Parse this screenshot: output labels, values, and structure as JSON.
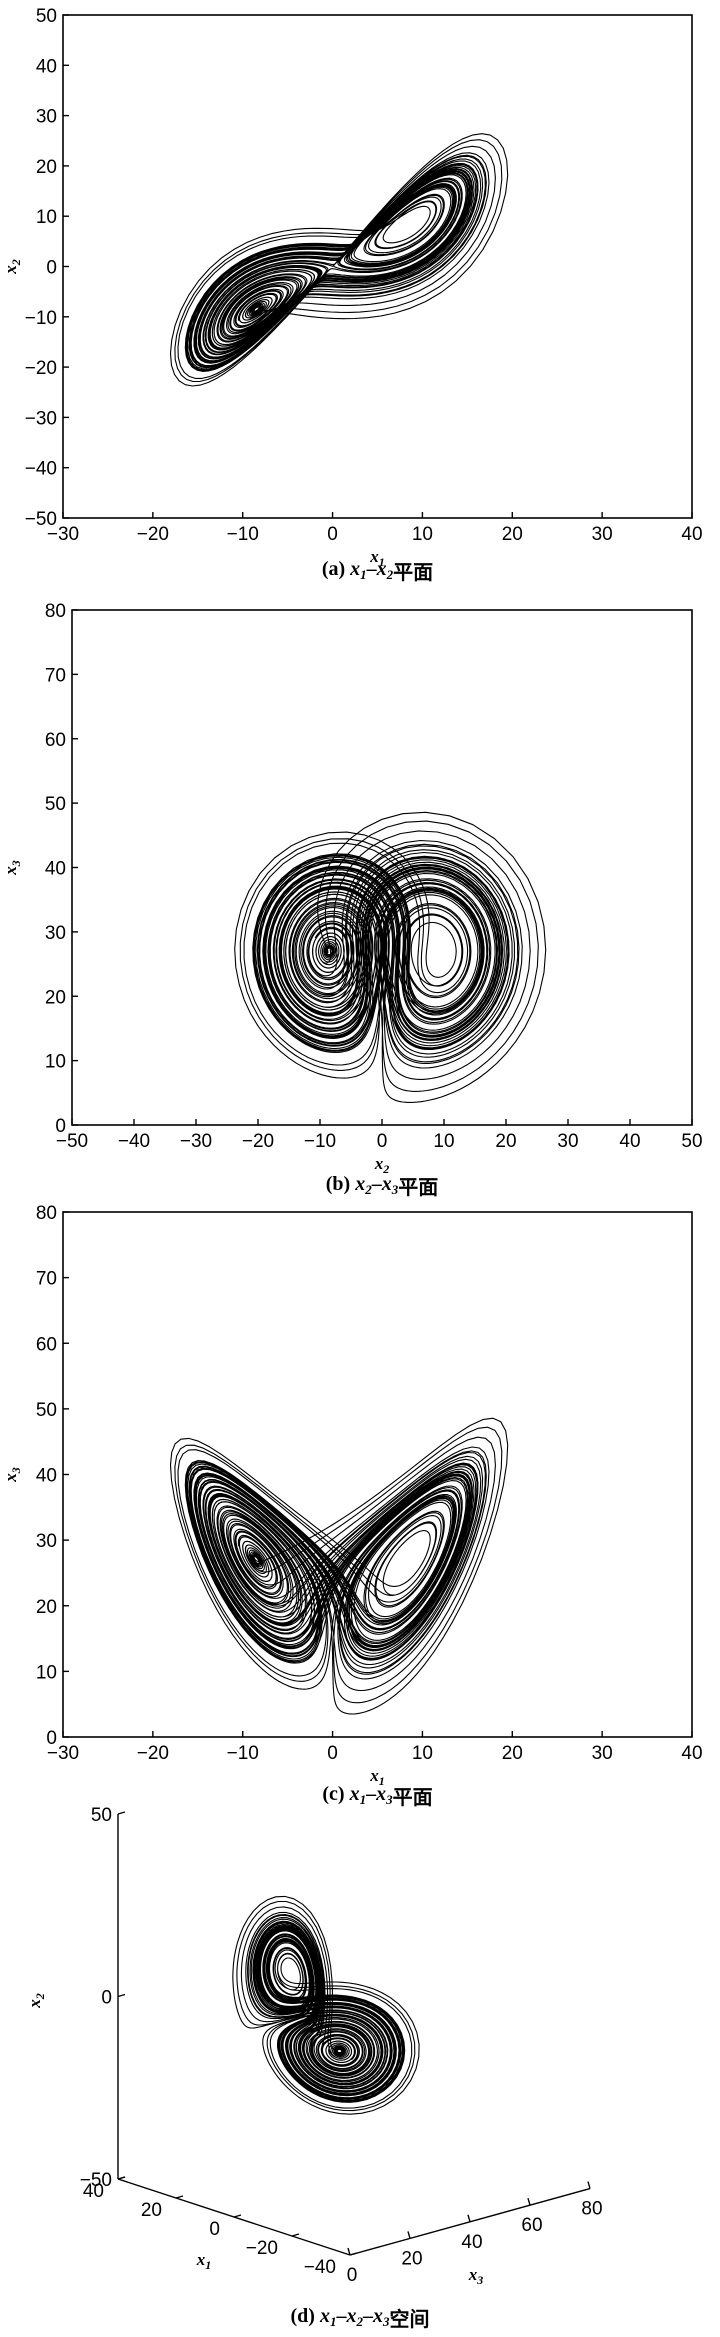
{
  "chart_data": [
    {
      "type": "line",
      "caption": "(a) x1-x2平面",
      "caption_parts": {
        "prefix": "(a)",
        "vars": [
          "x",
          "1",
          "x",
          "2"
        ],
        "suffix": "平面"
      },
      "xlabel": "x1",
      "ylabel": "x2",
      "xlim": [
        -30,
        40
      ],
      "ylim": [
        -50,
        50
      ],
      "xticks": [
        -30,
        -20,
        -10,
        0,
        10,
        20,
        30,
        40
      ],
      "yticks": [
        -50,
        -40,
        -30,
        -20,
        -10,
        0,
        10,
        20,
        30,
        40,
        50
      ],
      "series": [
        {
          "x": "x1",
          "y": "x2"
        }
      ]
    },
    {
      "type": "line",
      "caption": "(b) x2-x3平面",
      "caption_parts": {
        "prefix": "(b)",
        "vars": [
          "x",
          "2",
          "x",
          "3"
        ],
        "suffix": "平面"
      },
      "xlabel": "x2",
      "ylabel": "x3",
      "xlim": [
        -50,
        50
      ],
      "ylim": [
        0,
        80
      ],
      "xticks": [
        -50,
        -40,
        -30,
        -20,
        -10,
        0,
        10,
        20,
        30,
        40,
        50
      ],
      "yticks": [
        0,
        10,
        20,
        30,
        40,
        50,
        60,
        70,
        80
      ],
      "series": [
        {
          "x": "x2",
          "y": "x3"
        }
      ]
    },
    {
      "type": "line",
      "caption": "(c) x1-x3平面",
      "caption_parts": {
        "prefix": "(c)",
        "vars": [
          "x",
          "1",
          "x",
          "3"
        ],
        "suffix": "平面"
      },
      "xlabel": "x1",
      "ylabel": "x3",
      "xlim": [
        -30,
        40
      ],
      "ylim": [
        0,
        80
      ],
      "xticks": [
        -30,
        -20,
        -10,
        0,
        10,
        20,
        30,
        40
      ],
      "yticks": [
        0,
        10,
        20,
        30,
        40,
        50,
        60,
        70,
        80
      ],
      "series": [
        {
          "x": "x1",
          "y": "x3"
        }
      ]
    },
    {
      "type": "line",
      "caption": "(d) x1-x2-x3空间",
      "caption_parts": {
        "prefix": "(d)",
        "vars": [
          "x",
          "1",
          "x",
          "2",
          "x",
          "3"
        ],
        "suffix": "空间"
      },
      "xlabel": "x1",
      "ylabel": "x3",
      "zlabel": "x2",
      "xlim": [
        -40,
        40
      ],
      "ylim": [
        0,
        80
      ],
      "zlim": [
        -50,
        50
      ],
      "xticks": [
        -40,
        -20,
        0,
        20,
        40
      ],
      "yticks": [
        0,
        20,
        40,
        60,
        80
      ],
      "zticks": [
        -50,
        0,
        50
      ],
      "series": [
        {
          "x": "x1",
          "y": "x3",
          "z": "x2"
        }
      ]
    }
  ],
  "axis_names": {
    "x1": [
      "x",
      "1"
    ],
    "x2": [
      "x",
      "2"
    ],
    "x3": [
      "x",
      "3"
    ]
  },
  "colors": {
    "line": "#000000",
    "background": "#ffffff"
  }
}
